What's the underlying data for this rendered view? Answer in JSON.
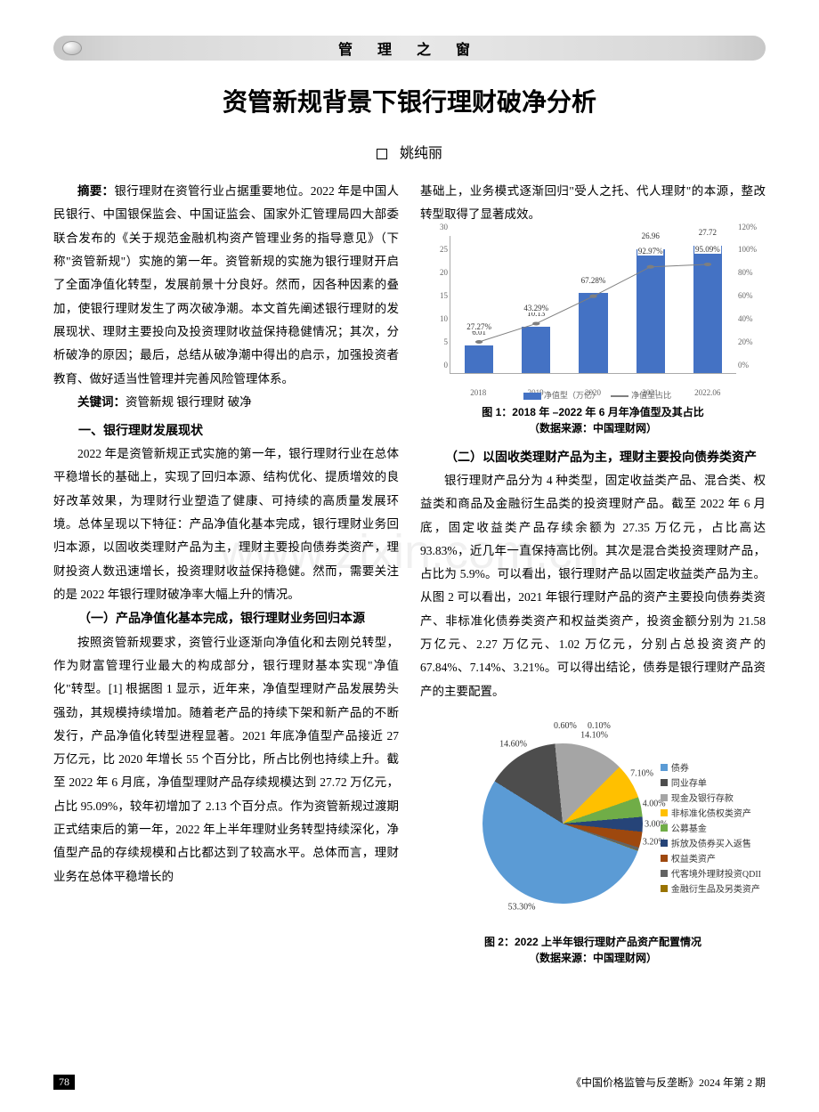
{
  "header": {
    "section": "管 理 之 窗"
  },
  "title": "资管新规背景下银行理财破净分析",
  "author": "姚纯丽",
  "watermark": "www.zixin.com.cn",
  "abstract_label": "摘要：",
  "abstract_text": "银行理财在资管行业占据重要地位。2022 年是中国人民银行、中国银保监会、中国证监会、国家外汇管理局四大部委联合发布的《关于规范金融机构资产管理业务的指导意见》（下称\"资管新规\"）实施的第一年。资管新规的实施为银行理财开启了全面净值化转型，发展前景十分良好。然而，因各种因素的叠加，使银行理财发生了两次破净潮。本文首先阐述银行理财的发展现状、理财主要投向及投资理财收益保持稳健情况；其次，分析破净的原因；最后，总结从破净潮中得出的启示，加强投资者教育、做好适当性管理并完善风险管理体系。",
  "keywords_label": "关键词：",
  "keywords_text": "资管新规  银行理财  破净",
  "s1_title": "一、银行理财发展现状",
  "s1_p1": "2022 年是资管新规正式实施的第一年，银行理财行业在总体平稳增长的基础上，实现了回归本源、结构优化、提质增效的良好改革效果，为理财行业塑造了健康、可持续的高质量发展环境。总体呈现以下特征：产品净值化基本完成，银行理财业务回归本源，以固收类理财产品为主，理财主要投向债券类资产，理财投资人数迅速增长，投资理财收益保持稳健。然而，需要关注的是 2022 年银行理财破净率大幅上升的情况。",
  "s1_1_title": "（一）产品净值化基本完成，银行理财业务回归本源",
  "s1_1_p1": "按照资管新规要求，资管行业逐渐向净值化和去刚兑转型，作为财富管理行业最大的构成部分，银行理财基本实现\"净值化\"转型。[1] 根据图 1 显示，近年来，净值型理财产品发展势头强劲，其规模持续增加。随着老产品的持续下架和新产品的不断发行，产品净值化转型进程显著。2021 年底净值型产品接近 27 万亿元，比 2020 年增长 55 个百分比，所占比例也持续上升。截至 2022 年 6 月底，净值型理财产品存续规模达到 27.72 万亿元，占比 95.09%，较年初增加了 2.13 个百分点。作为资管新规过渡期正式结束后的第一年，2022 年上半年理财业务转型持续深化，净值型产品的存续规模和占比都达到了较高水平。总体而言，理财业务在总体平稳增长的",
  "right_p1": "基础上，业务模式逐渐回归\"受人之托、代人理财\"的本源，整改转型取得了显著成效。",
  "fig1": {
    "caption_l1": "图 1：2018 年 –2022 年 6 月年净值型及其占比",
    "caption_l2": "（数据来源：中国理财网）",
    "categories": [
      "2018",
      "2019",
      "2020",
      "2021",
      "2022.06"
    ],
    "bar_values": [
      6.01,
      10.13,
      17.4,
      26.96,
      27.72
    ],
    "line_values": [
      27.27,
      43.29,
      67.28,
      92.97,
      95.09
    ],
    "y_left_max": 30,
    "y_left_step": 5,
    "y_right_max": 120,
    "y_right_step": 20,
    "bar_color": "#4472c4",
    "line_color": "#7f7f7f",
    "legend_bar": "净值型（万亿）",
    "legend_line": "净值型占比"
  },
  "s1_2_title": "（二）以固收类理财产品为主，理财主要投向债券类资产",
  "s1_2_p1": "银行理财产品分为 4 种类型，固定收益类产品、混合类、权益类和商品及金融衍生品类的投资理财产品。截至 2022 年 6 月底，固定收益类产品存续余额为 27.35 万亿元，占比高达 93.83%，近几年一直保持高比例。其次是混合类投资理财产品，占比为 5.9%。可以看出，银行理财产品以固定收益类产品为主。从图 2 可以看出，2021 年银行理财产品的资产主要投向债券类资产、非标准化债券类资产和权益类资产，投资金额分别为 21.58 万亿元、2.27 万亿元、1.02 万亿元，分别占总投资资产的 67.84%、7.14%、3.21%。可以得出结论，债券是银行理财产品资产的主要配置。",
  "fig2": {
    "caption_l1": "图 2：2022 上半年银行理财产品资产配置情况",
    "caption_l2": "（数据来源：中国理财网）",
    "slices": [
      {
        "label": "债券",
        "value": 53.3,
        "color": "#5b9bd5"
      },
      {
        "label": "同业存单",
        "value": 14.6,
        "color": "#4d4d4d"
      },
      {
        "label": "现金及银行存款",
        "value": 14.1,
        "color": "#a5a5a5"
      },
      {
        "label": "非标准化债权类资产",
        "value": 7.1,
        "color": "#ffc000"
      },
      {
        "label": "公募基金",
        "value": 4.0,
        "color": "#70ad47"
      },
      {
        "label": "拆放及债券买入返售",
        "value": 3.0,
        "color": "#264478"
      },
      {
        "label": "权益类资产",
        "value": 3.2,
        "color": "#9e480e"
      },
      {
        "label": "代客境外理财投资QDII",
        "value": 0.6,
        "color": "#636363"
      },
      {
        "label": "金融衍生品及另类资产",
        "value": 0.1,
        "color": "#997300"
      }
    ]
  },
  "footer": {
    "page": "78",
    "pub": "《中国价格监管与反垄断》2024 年第 2 期"
  }
}
